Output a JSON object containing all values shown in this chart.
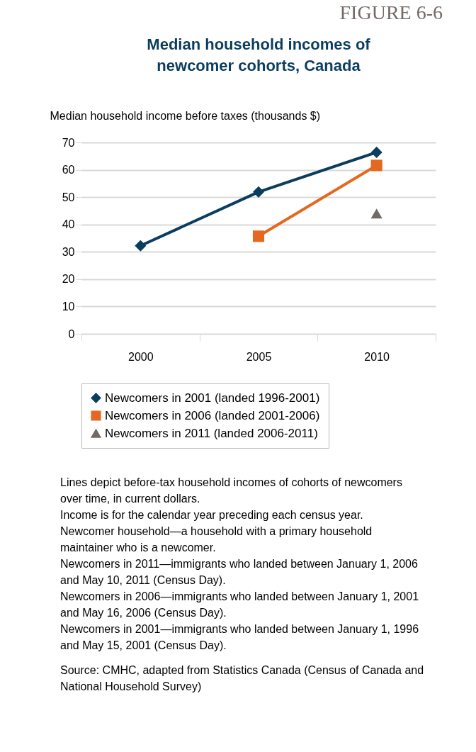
{
  "chart_data": {
    "type": "line",
    "title": "Median household incomes of\nnewcomer cohorts, Canada",
    "ylabel": "Median household income before taxes (thousands $)",
    "categories": [
      "2000",
      "2005",
      "2010"
    ],
    "series": [
      {
        "name": "Newcomers in 2001 (landed 1996-2001)",
        "color": "#0a3d5e",
        "marker": "diamond",
        "values": [
          32.2,
          51.9,
          66.4
        ]
      },
      {
        "name": "Newcomers in 2006 (landed 2001-2006)",
        "color": "#e2691f",
        "marker": "square",
        "values": [
          null,
          35.7,
          61.6
        ]
      },
      {
        "name": "Newcomers in 2011 (landed 2006-2011)",
        "color": "#736a66",
        "marker": "triangle",
        "values": [
          null,
          null,
          44
        ]
      }
    ],
    "ylim": [
      0,
      70
    ],
    "yticks": [
      0,
      10,
      20,
      30,
      40,
      50,
      60,
      70
    ],
    "grid": "y",
    "legend": "bottom",
    "annotations": [
      "FIGURE 6-6",
      "Lines depict before-tax household incomes of cohorts of newcomers\nover time, in current dollars.",
      "Income is for the calendar year preceding each census year.",
      "Newcomer household—a household with a primary household\nmaintainer who is a newcomer.",
      "Newcomers in 2011—immigrants who landed between January 1, 2006\nand May 10, 2011 (Census Day).",
      "Newcomers in 2006—immigrants who landed between January 1, 2001\nand May 16, 2006 (Census Day).",
      "Newcomers in 2001—immigrants who landed between January 1, 1996\nand May 15, 2001 (Census Day).",
      "Source: CMHC, adapted from Statistics Canada (Census of Canada and\nNational Household Survey)"
    ]
  }
}
